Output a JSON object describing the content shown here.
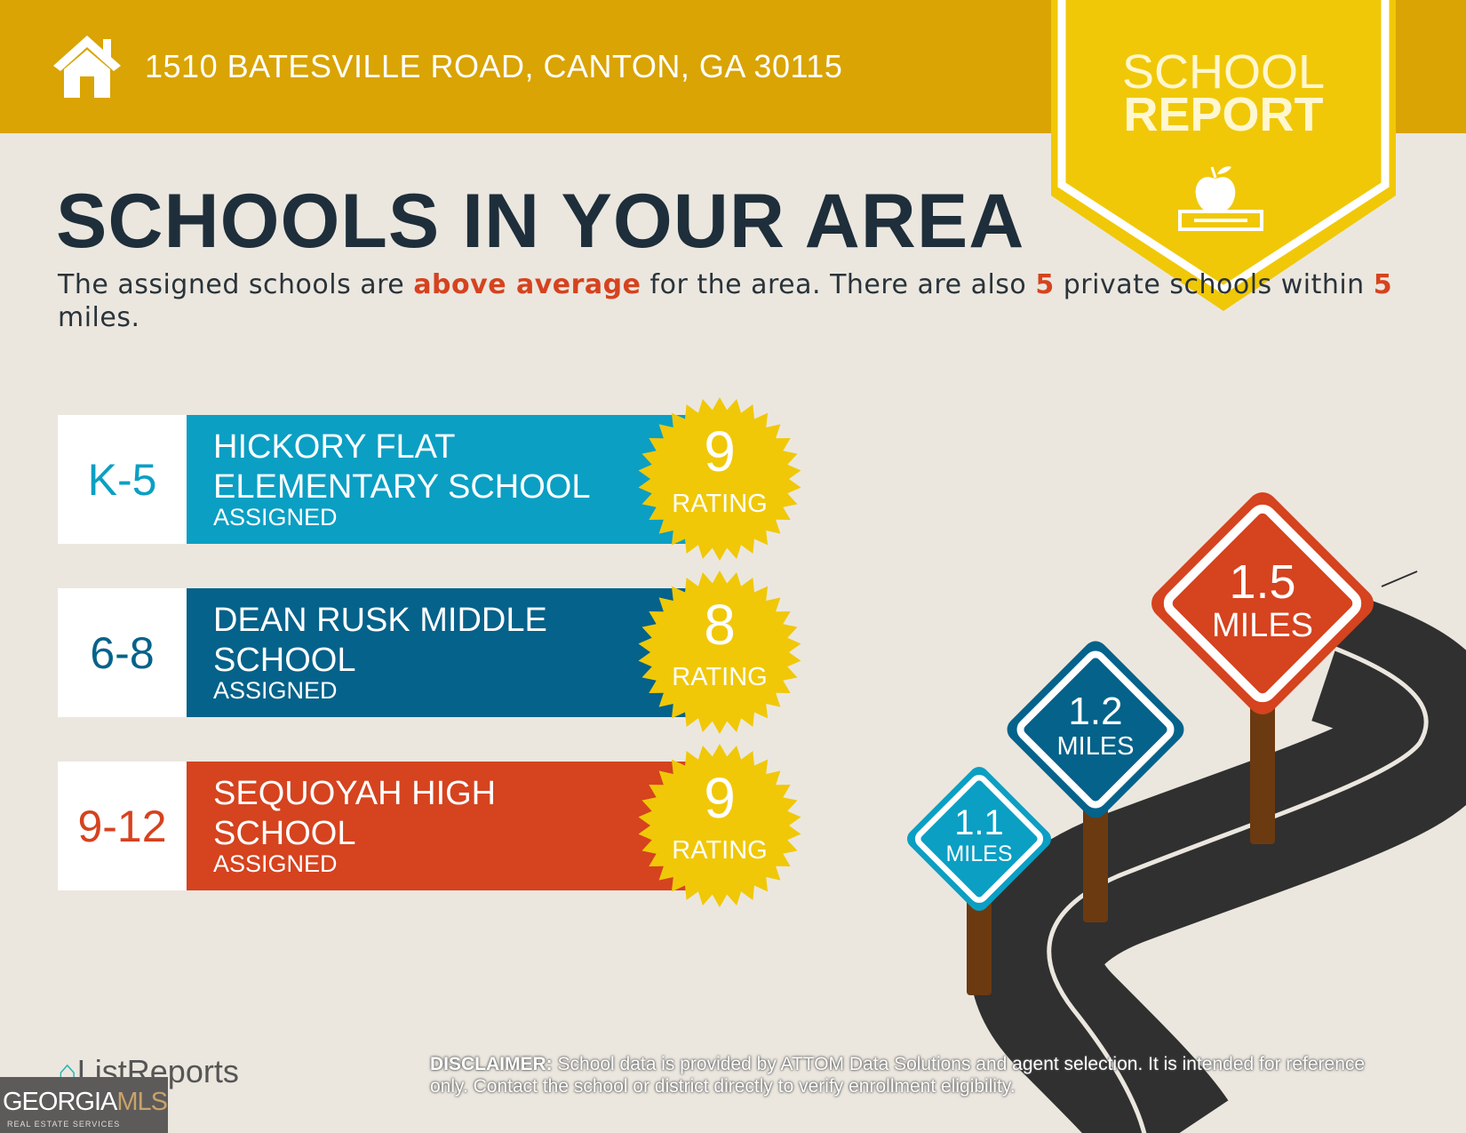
{
  "header": {
    "address": "1510 BATESVILLE ROAD, CANTON, GA 30115",
    "icon": "house-icon"
  },
  "banner": {
    "line1": "SCHOOL",
    "line2": "REPORT",
    "icon": "apple-on-book-icon"
  },
  "title": "SCHOOLS IN YOUR AREA",
  "subtitle": {
    "p1": "The assigned schools are ",
    "h1": "above average",
    "p2": " for the area. There are also ",
    "h2": "5",
    "p3": " private schools within ",
    "h3": "5",
    "p4": " miles."
  },
  "schools": [
    {
      "grades": "K-5",
      "name": "HICKORY FLAT ELEMENTARY SCHOOL",
      "status": "ASSIGNED",
      "rating": "9",
      "rating_label": "RATING",
      "color": "#0b9fc4"
    },
    {
      "grades": "6-8",
      "name": "DEAN RUSK MIDDLE SCHOOL",
      "status": "ASSIGNED",
      "rating": "8",
      "rating_label": "RATING",
      "color": "#05628a"
    },
    {
      "grades": "9-12",
      "name": "SEQUOYAH HIGH SCHOOL",
      "status": "ASSIGNED",
      "rating": "9",
      "rating_label": "RATING",
      "color": "#d5431f"
    }
  ],
  "distances": [
    {
      "value": "1.1",
      "unit": "MILES",
      "color": "#0b9fc4"
    },
    {
      "value": "1.2",
      "unit": "MILES",
      "color": "#05628a"
    },
    {
      "value": "1.5",
      "unit": "MILES",
      "color": "#d5431f"
    }
  ],
  "disclaimer": {
    "label": "DISCLAIMER:",
    "text": " School data is provided by ATTOM Data Solutions and agent selection. It is intended for reference only. Contact the school or district directly to verify enrollment eligibility."
  },
  "logos": {
    "listreports": "ListReports",
    "gmls_a": "GEORGIA",
    "gmls_b": "MLS",
    "gmls_sub": "REAL ESTATE SERVICES"
  },
  "colors": {
    "header": "#d9a404",
    "banner": "#f0c808",
    "background": "#ebe7df",
    "badge": "#f0c808",
    "road": "#303030",
    "post": "#6b3a10"
  }
}
